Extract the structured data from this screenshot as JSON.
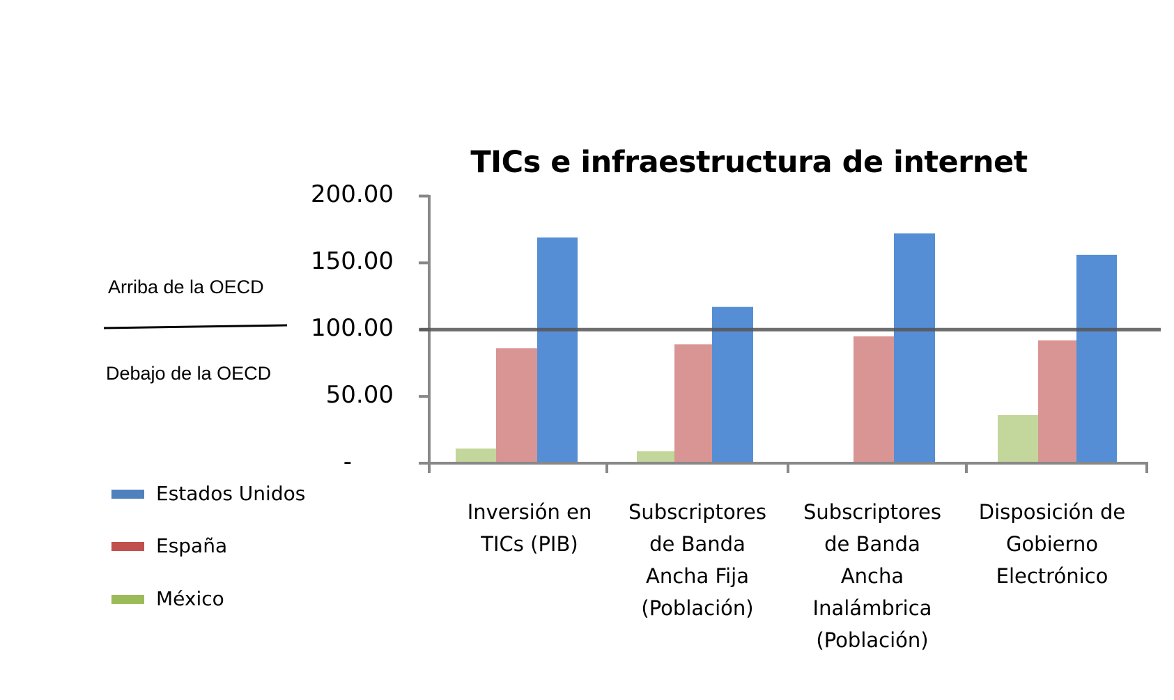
{
  "chart_data": {
    "type": "bar",
    "title": "TICs e infraestructura de internet",
    "xlabel": "",
    "ylabel": "",
    "ylim": [
      0,
      200
    ],
    "yticks": [
      {
        "value": 0,
        "label": "-"
      },
      {
        "value": 50,
        "label": "50.00"
      },
      {
        "value": 100,
        "label": "100.00"
      },
      {
        "value": 150,
        "label": "150.00"
      },
      {
        "value": 200,
        "label": "200.00"
      }
    ],
    "grid": false,
    "reference_line": {
      "value": 100,
      "color": "#555555"
    },
    "categories": [
      "Inversión en TICs (PIB)",
      "Subscriptores de Banda Ancha Fija (Población)",
      "Subscriptores de Banda Ancha Inalámbrica (Población)",
      "Disposición de Gobierno Electrónico"
    ],
    "series": [
      {
        "name": "México",
        "color": "#c3d69b",
        "legend_color": "#9bbb59",
        "values": [
          11,
          9,
          0,
          36
        ]
      },
      {
        "name": "España",
        "color": "#d99594",
        "legend_color": "#c0504d",
        "values": [
          86,
          89,
          95,
          92
        ]
      },
      {
        "name": "Estados Unidos",
        "color": "#558ed5",
        "legend_color": "#4f81bd",
        "values": [
          169,
          117,
          172,
          156
        ]
      }
    ],
    "legend_position": "left"
  },
  "title": "TICs e infraestructura de internet",
  "side": {
    "above": "Arriba de la OECD",
    "below": "Debajo  de la OECD"
  },
  "yaxis": {
    "t200": "200.00",
    "t150": "150.00",
    "t100": "100.00",
    "t50": "50.00",
    "t0": "-"
  },
  "legend": {
    "us": "Estados Unidos",
    "es": "España",
    "mx": "México"
  },
  "xlabels": {
    "c1": [
      "Inversión en",
      "TICs (PIB)"
    ],
    "c2": [
      "Subscriptores",
      "de Banda",
      "Ancha Fija",
      "(Población)"
    ],
    "c3": [
      "Subscriptores",
      "de Banda",
      "Ancha",
      "Inalámbrica",
      "(Población)"
    ],
    "c4": [
      "Disposición de",
      "Gobierno",
      "Electrónico"
    ]
  }
}
